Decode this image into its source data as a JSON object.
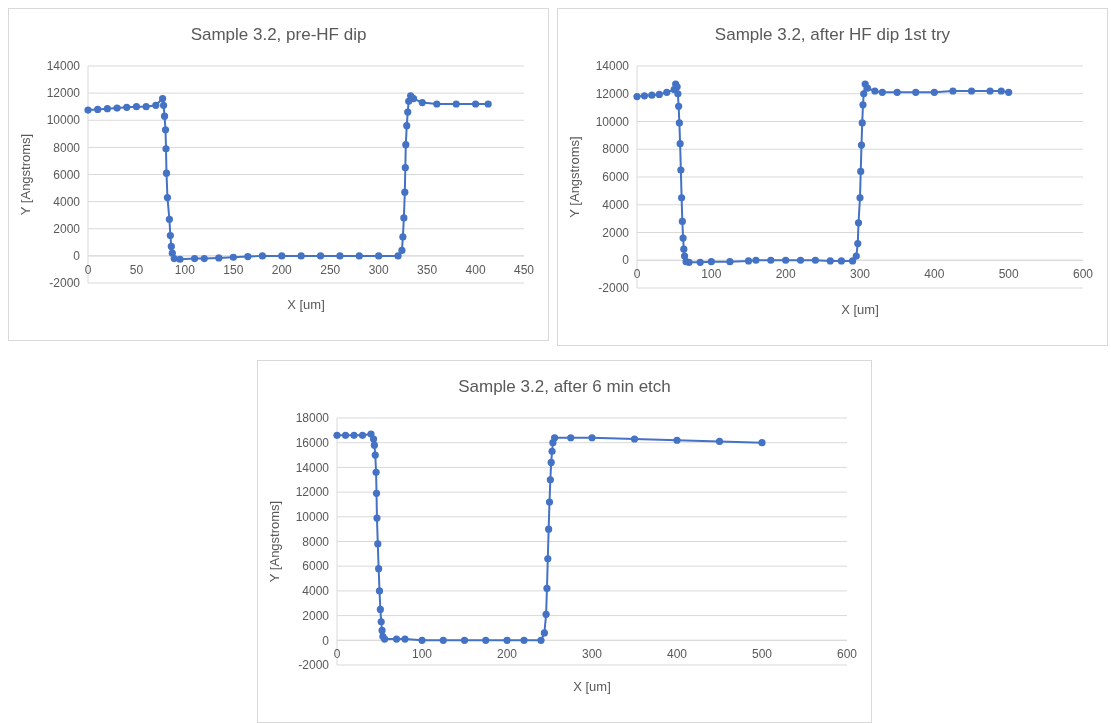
{
  "chart_data": [
    {
      "type": "line",
      "title": "Sample 3.2, pre-HF dip",
      "xlabel": "X [um]",
      "ylabel": "Y [Angstroms]",
      "xlim": [
        0,
        450
      ],
      "xticks": [
        0,
        50,
        100,
        150,
        200,
        250,
        300,
        350,
        400,
        450
      ],
      "ylim": [
        -2000,
        14000
      ],
      "yticks": [
        -2000,
        0,
        2000,
        4000,
        6000,
        8000,
        10000,
        12000,
        14000
      ],
      "grid": "y",
      "marker": "circle",
      "line_style": "solid",
      "series": [
        {
          "color": "#4472c4",
          "x": [
            0,
            10,
            20,
            30,
            40,
            50,
            60,
            70,
            77,
            78,
            79,
            80,
            80.5,
            81,
            82,
            84,
            85,
            86,
            87,
            89,
            95,
            110,
            120,
            135,
            150,
            165,
            180,
            200,
            220,
            240,
            260,
            280,
            300,
            320,
            324,
            325,
            326,
            327,
            327.5,
            328,
            329,
            330,
            331,
            333,
            336,
            345,
            360,
            380,
            400,
            413
          ],
          "values": [
            10750,
            10800,
            10850,
            10900,
            10950,
            11000,
            11000,
            11100,
            11600,
            11100,
            10300,
            9300,
            7900,
            6100,
            4300,
            2700,
            1500,
            700,
            200,
            -200,
            -250,
            -200,
            -200,
            -150,
            -100,
            -50,
            0,
            0,
            0,
            0,
            0,
            0,
            0,
            0,
            400,
            1400,
            2800,
            4700,
            6500,
            8200,
            9600,
            10600,
            11400,
            11800,
            11600,
            11300,
            11200,
            11200,
            11200,
            11200
          ]
        }
      ]
    },
    {
      "type": "line",
      "title": "Sample 3.2, after HF dip 1st try",
      "xlabel": "X [um]",
      "ylabel": "Y [Angstroms]",
      "xlim": [
        0,
        600
      ],
      "xticks": [
        0,
        100,
        200,
        300,
        400,
        500,
        600
      ],
      "ylim": [
        -2000,
        14000
      ],
      "yticks": [
        -2000,
        0,
        2000,
        4000,
        6000,
        8000,
        10000,
        12000,
        14000
      ],
      "grid": "y",
      "marker": "circle",
      "line_style": "solid",
      "series": [
        {
          "color": "#4472c4",
          "x": [
            0,
            10,
            20,
            30,
            40,
            50,
            52,
            54,
            55,
            56,
            57,
            58,
            59,
            60,
            61,
            62,
            63,
            64,
            66,
            70,
            85,
            100,
            125,
            150,
            160,
            180,
            200,
            220,
            240,
            260,
            275,
            290,
            295,
            297,
            298,
            300,
            301,
            302,
            303,
            304,
            305,
            307,
            310,
            320,
            330,
            350,
            375,
            400,
            425,
            450,
            475,
            490,
            500
          ],
          "values": [
            11800,
            11850,
            11900,
            11950,
            12100,
            12300,
            12700,
            12500,
            12000,
            11100,
            9900,
            8400,
            6500,
            4500,
            2800,
            1600,
            800,
            300,
            -100,
            -150,
            -150,
            -100,
            -100,
            -50,
            0,
            0,
            0,
            0,
            0,
            -50,
            -50,
            -50,
            300,
            1200,
            2700,
            4500,
            6400,
            8300,
            9900,
            11200,
            12000,
            12700,
            12400,
            12200,
            12100,
            12100,
            12100,
            12100,
            12200,
            12200,
            12200,
            12200,
            12100
          ]
        }
      ]
    },
    {
      "type": "line",
      "title": "Sample 3.2, after 6 min etch",
      "xlabel": "X [um]",
      "ylabel": "Y [Angstroms]",
      "xlim": [
        0,
        600
      ],
      "xticks": [
        0,
        100,
        200,
        300,
        400,
        500,
        600
      ],
      "ylim": [
        -2000,
        18000
      ],
      "yticks": [
        -2000,
        0,
        2000,
        4000,
        6000,
        8000,
        10000,
        12000,
        14000,
        16000,
        18000
      ],
      "grid": "y",
      "marker": "circle",
      "line_style": "solid",
      "series": [
        {
          "color": "#4472c4",
          "x": [
            0,
            10,
            20,
            30,
            40,
            43,
            44,
            45,
            46,
            46.5,
            47,
            48,
            49,
            50,
            51,
            52,
            53,
            54,
            56,
            70,
            80,
            100,
            125,
            150,
            175,
            200,
            220,
            240,
            244,
            246,
            247,
            248,
            249,
            250,
            251,
            252,
            253,
            254,
            256,
            275,
            300,
            350,
            400,
            450,
            500
          ],
          "values": [
            16600,
            16600,
            16600,
            16600,
            16700,
            16300,
            15800,
            15000,
            13600,
            11900,
            9900,
            7800,
            5800,
            4000,
            2500,
            1500,
            800,
            300,
            100,
            100,
            100,
            0,
            0,
            0,
            0,
            0,
            0,
            0,
            600,
            2100,
            4200,
            6600,
            9000,
            11200,
            13000,
            14400,
            15300,
            16000,
            16400,
            16400,
            16400,
            16300,
            16200,
            16100,
            16000
          ]
        }
      ]
    }
  ]
}
